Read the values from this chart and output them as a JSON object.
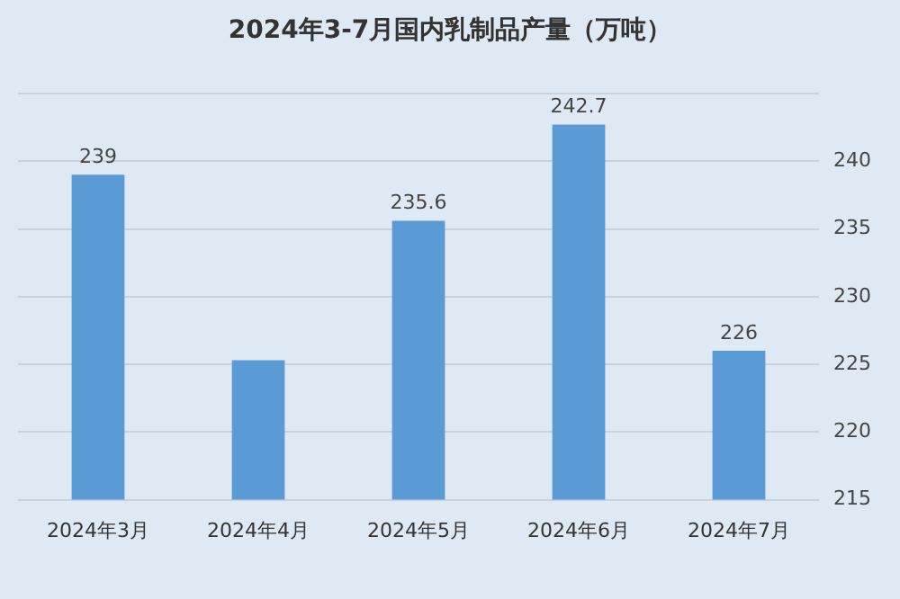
{
  "chart_data": {
    "type": "bar",
    "title": "2024年3-7月国内乳制品产量（万吨）",
    "categories": [
      "2024年3月",
      "2024年4月",
      "2024年5月",
      "2024年6月",
      "2024年7月"
    ],
    "values": [
      239,
      225.3,
      235.6,
      242.7,
      226
    ],
    "value_labels": [
      "239",
      null,
      "235.6",
      "242.7",
      "226"
    ],
    "color": "#5b9bd5",
    "ylim": [
      215,
      245
    ],
    "yticks": [
      215,
      220,
      225,
      230,
      235,
      240,
      {
        "value": 245,
        "label": null
      }
    ],
    "grid": "y"
  }
}
